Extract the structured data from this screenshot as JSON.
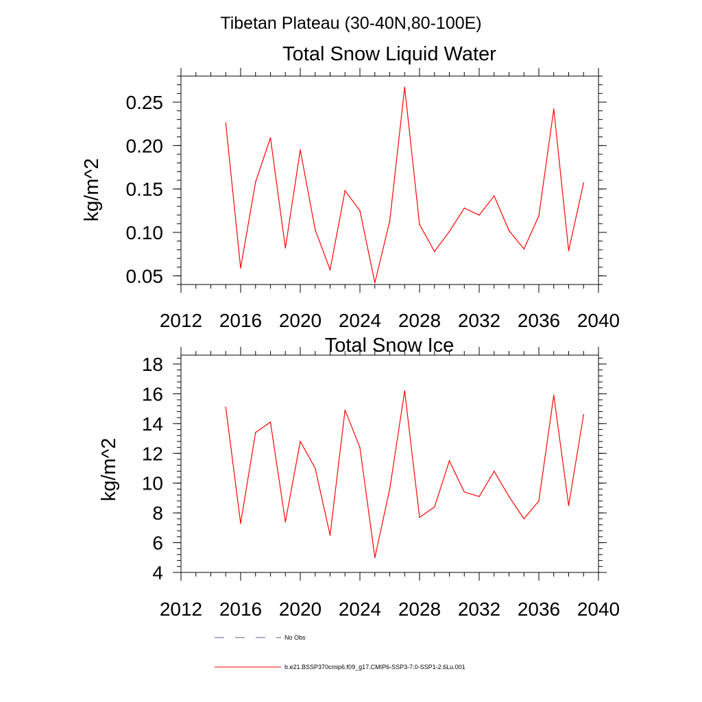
{
  "figure": {
    "main_title": "Tibetan Plateau (30-40N,80-100E)"
  },
  "chart_data": [
    {
      "type": "line",
      "title": "Total Snow Liquid Water",
      "xlabel": "",
      "ylabel": "kg/m^2",
      "xlim": [
        2012,
        2040
      ],
      "ylim": [
        0.04,
        0.28
      ],
      "x_ticks": [
        2012,
        2016,
        2020,
        2024,
        2028,
        2032,
        2036,
        2040
      ],
      "y_ticks": [
        0.05,
        0.1,
        0.15,
        0.2,
        0.25
      ],
      "y_tick_labels": [
        "0.05",
        "0.10",
        "0.15",
        "0.20",
        "0.25"
      ],
      "x_minor_step": 1,
      "y_minor_step": 0.01,
      "grid": false,
      "series": [
        {
          "name": "b.e21.BSSP370cmip6.f09_g17.CMIP6-SSP3-7.0-SSP1-2.6Lu.001",
          "color": "#ff0000",
          "x": [
            2015,
            2016,
            2017,
            2018,
            2019,
            2020,
            2021,
            2022,
            2023,
            2024,
            2025,
            2026,
            2027,
            2028,
            2029,
            2030,
            2031,
            2032,
            2033,
            2034,
            2035,
            2036,
            2037,
            2038,
            2039
          ],
          "y": [
            0.226,
            0.059,
            0.158,
            0.209,
            0.082,
            0.195,
            0.103,
            0.057,
            0.148,
            0.125,
            0.042,
            0.113,
            0.267,
            0.109,
            0.078,
            0.101,
            0.128,
            0.12,
            0.142,
            0.102,
            0.081,
            0.119,
            0.242,
            0.079,
            0.157
          ]
        }
      ]
    },
    {
      "type": "line",
      "title": "Total Snow Ice",
      "xlabel": "",
      "ylabel": "kg/m^2",
      "xlim": [
        2012,
        2040
      ],
      "ylim": [
        4,
        18.6
      ],
      "x_ticks": [
        2012,
        2016,
        2020,
        2024,
        2028,
        2032,
        2036,
        2040
      ],
      "y_ticks": [
        4,
        6,
        8,
        10,
        12,
        14,
        16,
        18
      ],
      "y_tick_labels": [
        "4",
        "6",
        "8",
        "10",
        "12",
        "14",
        "16",
        "18"
      ],
      "x_minor_step": 1,
      "y_minor_step": 0.4,
      "grid": false,
      "series": [
        {
          "name": "b.e21.BSSP370cmip6.f09_g17.CMIP6-SSP3-7.0-SSP1-2.6Lu.001",
          "color": "#ff0000",
          "x": [
            2015,
            2016,
            2017,
            2018,
            2019,
            2020,
            2021,
            2022,
            2023,
            2024,
            2025,
            2026,
            2027,
            2028,
            2029,
            2030,
            2031,
            2032,
            2033,
            2034,
            2035,
            2036,
            2037,
            2038,
            2039
          ],
          "y": [
            15.1,
            7.3,
            13.4,
            14.1,
            7.4,
            12.8,
            11.0,
            6.5,
            14.9,
            12.4,
            5.0,
            9.6,
            16.2,
            7.7,
            8.4,
            11.5,
            9.4,
            9.1,
            10.8,
            9.1,
            7.6,
            8.8,
            15.9,
            8.5,
            14.6
          ]
        }
      ]
    }
  ],
  "legend": {
    "placement": "bottom",
    "items": [
      {
        "label": "No Obs",
        "color": "#5a5a9e",
        "style": "dashed"
      },
      {
        "label": "b.e21.BSSP370cmip6.f09_g17.CMIP6-SSP3-7.0-SSP1-2.6Lu.001",
        "color": "#ff0000",
        "style": "solid"
      }
    ]
  }
}
